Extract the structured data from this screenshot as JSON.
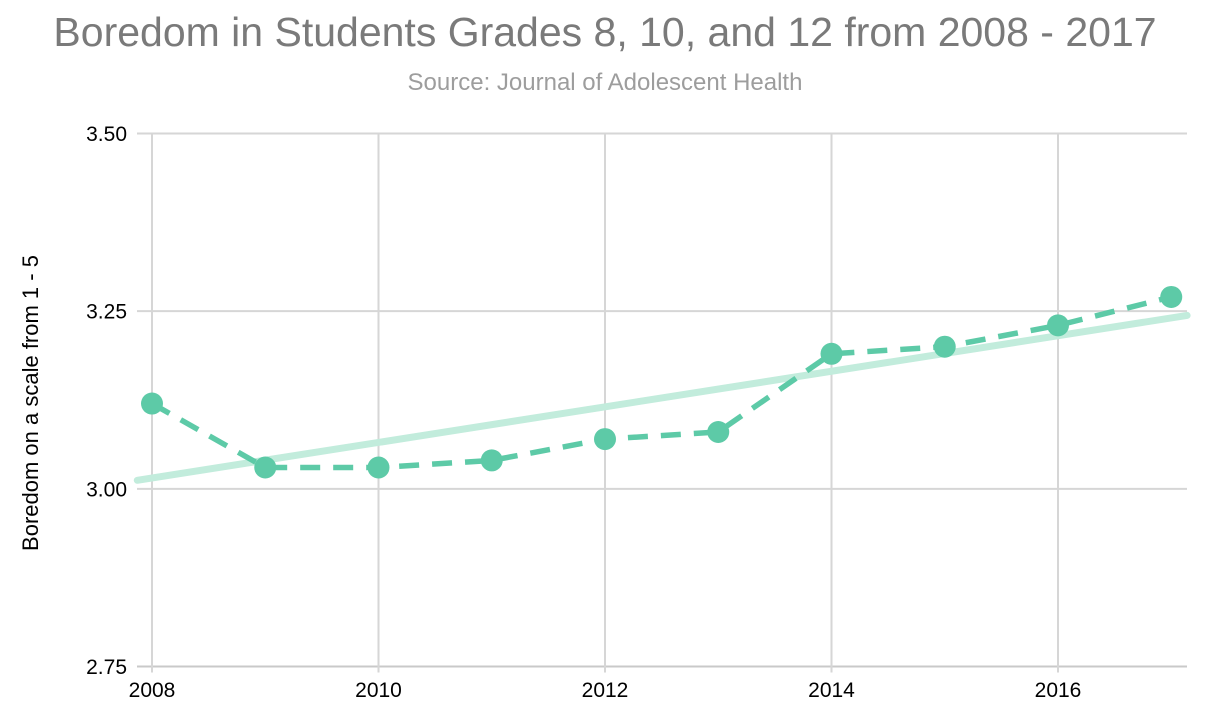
{
  "chart_data": {
    "type": "line",
    "title": "Boredom in Students Grades 8, 10, and 12 from 2008 - 2017",
    "subtitle": "Source: Journal of Adolescent Health",
    "xlabel": "",
    "ylabel": "Boredom on a scale from 1 - 5",
    "x": [
      2008,
      2009,
      2010,
      2011,
      2012,
      2013,
      2014,
      2015,
      2016,
      2017
    ],
    "series": [
      {
        "name": "mean-boredom-score",
        "style": "dashed-line-with-markers",
        "color": "#5dcaa7",
        "values": [
          3.12,
          3.03,
          3.03,
          3.04,
          3.07,
          3.08,
          3.19,
          3.2,
          3.23,
          3.27
        ]
      },
      {
        "name": "linear-trendline",
        "style": "solid-line",
        "color": "#c2ecdc",
        "x": [
          2007.87,
          2017.14
        ],
        "values": [
          3.012,
          3.244
        ]
      }
    ],
    "ylim": [
      2.75,
      3.5
    ],
    "yticks": [
      3.5,
      3.25,
      3.0,
      2.75
    ],
    "ytick_labels": [
      "3.50",
      "3.25",
      "3.00",
      "2.75"
    ],
    "xticks": [
      2008,
      2010,
      2012,
      2014,
      2016
    ],
    "grid": true,
    "legend_position": "none"
  },
  "colors": {
    "background": "#ffffff",
    "title": "#7a7a7a",
    "subtitle": "#9d9d9d",
    "axis_text": "#000000",
    "gridline": "#d6d6d6",
    "baseline": "#c9c9c9",
    "series": "#5dcaa7",
    "trendline": "#c2ecdc"
  }
}
